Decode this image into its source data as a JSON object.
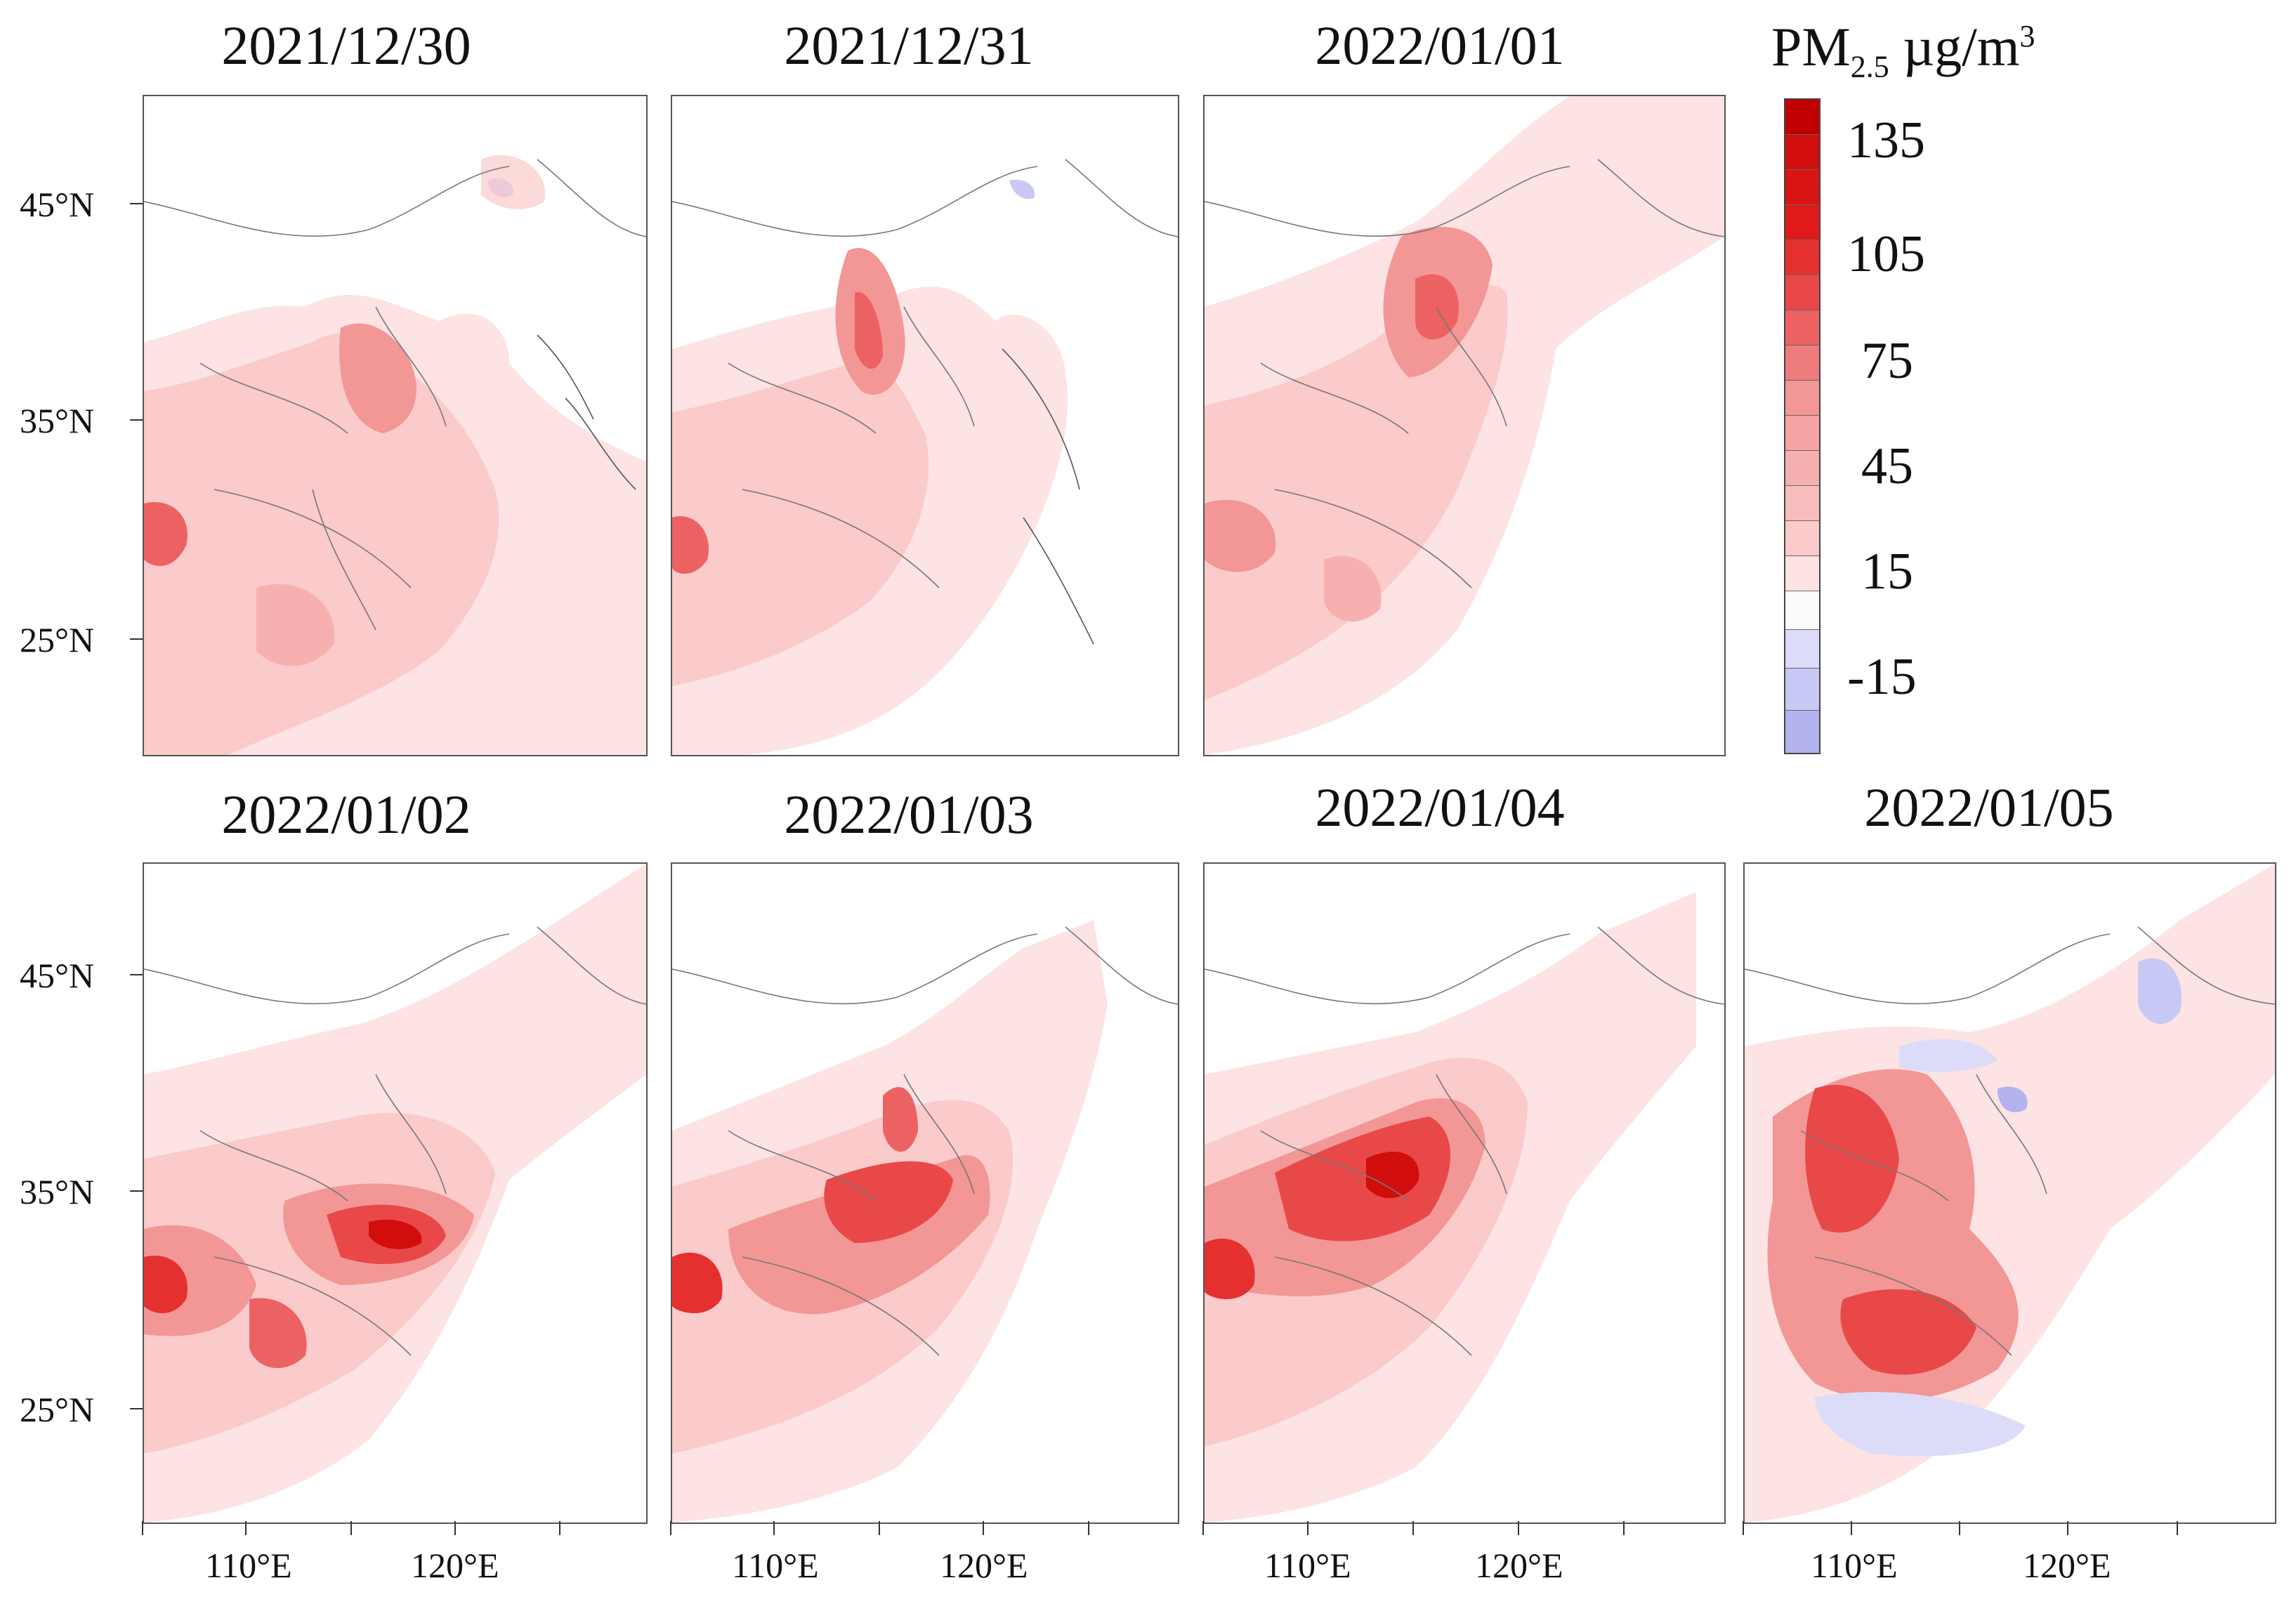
{
  "figure": {
    "legend": {
      "title_prefix": "PM",
      "title_sub": "2.5",
      "title_unit": " µg/m",
      "title_sup": "3",
      "labels": [
        "135",
        "105",
        "75",
        "45",
        "15",
        "-15"
      ],
      "levels": [
        -25,
        -20,
        -15,
        -10,
        -5,
        5,
        10,
        15,
        20,
        25,
        30,
        35,
        40,
        45,
        50,
        55,
        60,
        75,
        90,
        105,
        120,
        135,
        150
      ],
      "colors": {
        "neg_strong": "#b3b3f0",
        "neg_mid": "#c8c8f5",
        "neg_light": "#dcdcf8",
        "neutral": "#fbfbfd",
        "pos_1": "#fde3e3",
        "pos_2": "#fbcaca",
        "pos_3": "#f7b0b0",
        "pos_4": "#f39696",
        "pos_5": "#ef7c7c",
        "pos_6": "#ec6262",
        "pos_7": "#e84848",
        "pos_8": "#e53030",
        "pos_9": "#e01a1a",
        "pos_10": "#d20d0d",
        "pos_11": "#c00000"
      }
    },
    "axes": {
      "lat_labels": [
        "45°N",
        "35°N",
        "25°N"
      ],
      "lon_labels": [
        "110°E",
        "120°E"
      ]
    },
    "panels": [
      {
        "date": "2021/12/30"
      },
      {
        "date": "2021/12/31"
      },
      {
        "date": "2022/01/01"
      },
      {
        "date": "2022/01/02"
      },
      {
        "date": "2022/01/03"
      },
      {
        "date": "2022/01/04"
      },
      {
        "date": "2022/01/05"
      }
    ]
  }
}
